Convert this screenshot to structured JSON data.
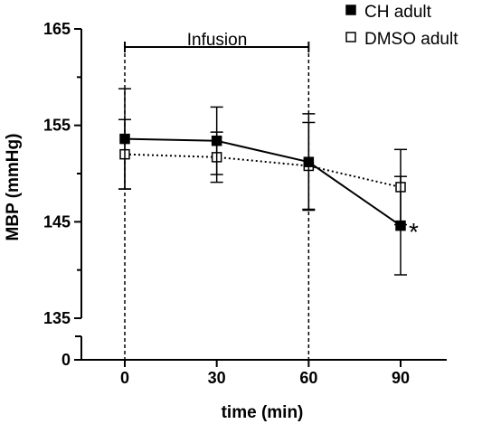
{
  "chart_data": {
    "type": "line",
    "xlabel": "time (min)",
    "ylabel": "MBP (mmHg)",
    "x": [
      0,
      30,
      60,
      90
    ],
    "x_ticks": [
      "0",
      "30",
      "60",
      "90"
    ],
    "y_ticks": [
      "135",
      "145",
      "155",
      "165"
    ],
    "y_zero_tick": "0",
    "ylim": [
      135,
      165
    ],
    "y_axis_break": true,
    "grid": false,
    "legend_position": "top-right",
    "series": [
      {
        "name": "CH adult",
        "values": [
          153.6,
          153.4,
          151.2,
          144.6
        ],
        "error": [
          5.2,
          3.5,
          5.0,
          5.1
        ],
        "marker": "filled-square",
        "line_style": "solid",
        "color": "#000000"
      },
      {
        "name": "DMSO adult",
        "values": [
          152.0,
          151.7,
          150.8,
          148.6
        ],
        "error": [
          3.6,
          2.6,
          4.5,
          3.9
        ],
        "marker": "open-square",
        "line_style": "dotted",
        "color": "#000000"
      }
    ],
    "annotations": {
      "infusion_label": "Infusion",
      "infusion_start": 0,
      "infusion_end": 60,
      "significance_label": "*",
      "significance_at": 90
    }
  }
}
